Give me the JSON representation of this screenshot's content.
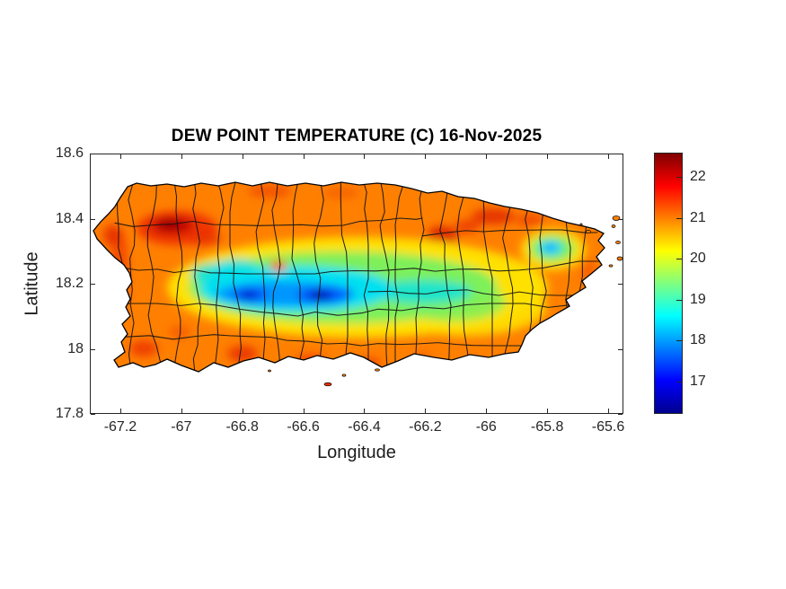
{
  "figure": {
    "background": "#ffffff",
    "kind": "MATLAB-style geographic filled-contour figure"
  },
  "chart_data": {
    "type": "heatmap",
    "title": "DEW POINT TEMPERATURE (C) 16-Nov-2025",
    "xlabel": "Longitude",
    "ylabel": "Latitude",
    "region": "Puerto Rico with municipality boundaries, filled contours of dew point temperature",
    "units": "degrees C",
    "grid": false,
    "xlim": [
      -67.3,
      -65.55
    ],
    "ylim": [
      17.8,
      18.6
    ],
    "xticks": [
      -67.2,
      -67,
      -66.8,
      -66.6,
      -66.4,
      -66.2,
      -66,
      -65.8,
      -65.6
    ],
    "xtick_labels": [
      "-67.2",
      "-67",
      "-66.8",
      "-66.6",
      "-66.4",
      "-66.2",
      "-66",
      "-65.8",
      "-65.6"
    ],
    "yticks": [
      18.6,
      18.4,
      18.2,
      18,
      17.8
    ],
    "ytick_labels": [
      "18.6",
      "18.4",
      "18.2",
      "18",
      "17.8"
    ],
    "colorbar": {
      "colormap": "jet",
      "clim": [
        16.2,
        22.6
      ],
      "ticks": [
        22,
        21,
        20,
        19,
        18,
        17
      ],
      "tick_labels": [
        "22",
        "21",
        "20",
        "19",
        "18",
        "17"
      ],
      "location": "right-outside"
    },
    "colors": {
      "coastal_baseline_orange": "#ff8000",
      "hot_spot_dark_red": "#8f0000",
      "cool_core_navy": "#000f96",
      "axis_text": "#262626",
      "boundary_lines": "#141414"
    },
    "features": [
      {
        "feature": "northwest interior hot spot",
        "lon": -67.01,
        "lat": 18.37,
        "dew_point_c": 22.4
      },
      {
        "feature": "north coast warm band",
        "lon": -66.6,
        "lat": 18.47,
        "dew_point_c": 21.4
      },
      {
        "feature": "San Juan metro warm patch",
        "lon": -66.14,
        "lat": 18.34,
        "dew_point_c": 21.9
      },
      {
        "feature": "west coast warm strip",
        "lon": -67.19,
        "lat": 18.25,
        "dew_point_c": 21.6
      },
      {
        "feature": "central cordillera cool band",
        "lon": -66.62,
        "lat": 18.17,
        "dew_point_c": 18.6
      },
      {
        "feature": "deep cool core west (Adjuntas area)",
        "lon": -66.78,
        "lat": 18.16,
        "dew_point_c": 16.8
      },
      {
        "feature": "deepest cool core (Orocovis-Barranquitas area)",
        "lon": -66.55,
        "lat": 18.16,
        "dew_point_c": 16.3
      },
      {
        "feature": "El Yunque cool spot",
        "lon": -65.79,
        "lat": 18.31,
        "dew_point_c": 17.8
      },
      {
        "feature": "south coast warm band",
        "lon": -66.4,
        "lat": 17.98,
        "dew_point_c": 21.3
      },
      {
        "feature": "typical coastal baseline",
        "dew_point_c": 21.0
      }
    ]
  }
}
